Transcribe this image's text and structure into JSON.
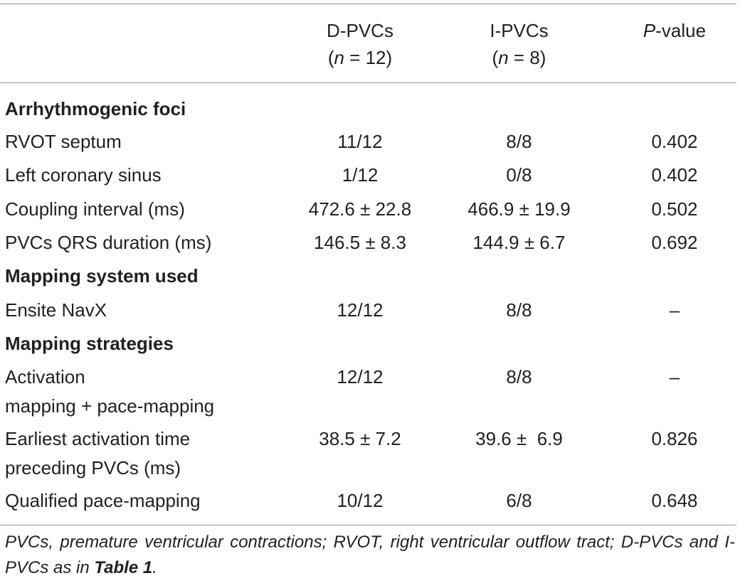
{
  "table": {
    "headers": {
      "col2_line1": "D-PVCs",
      "col2_n_italic": "n",
      "col2_n_rest": " = 12)",
      "col3_line1": "I-PVCs",
      "col3_n_italic": "n",
      "col3_n_rest": " = 8)",
      "open_paren": "(",
      "pvalue_italic": "P",
      "pvalue_rest": "-value"
    },
    "sections": [
      {
        "title": "Arrhythmogenic foci",
        "rows": [
          {
            "label": "RVOT septum",
            "d_pvcs": "11/12",
            "i_pvcs": "8/8",
            "p_value": "0.402"
          },
          {
            "label": "Left coronary sinus",
            "d_pvcs": "1/12",
            "i_pvcs": "0/8",
            "p_value": "0.402"
          },
          {
            "label": "Coupling interval (ms)",
            "d_pvcs": "472.6 ± 22.8",
            "i_pvcs": "466.9 ± 19.9",
            "p_value": "0.502"
          },
          {
            "label": "PVCs QRS duration (ms)",
            "d_pvcs": "146.5 ± 8.3",
            "i_pvcs": "144.9 ± 6.7",
            "p_value": "0.692"
          }
        ]
      },
      {
        "title": "Mapping system used",
        "rows": [
          {
            "label": "Ensite NavX",
            "d_pvcs": "12/12",
            "i_pvcs": "8/8",
            "p_value": "–"
          }
        ]
      },
      {
        "title": "Mapping strategies",
        "rows": [
          {
            "label_line1": "Activation",
            "label_line2": "mapping + pace-mapping",
            "d_pvcs": "12/12",
            "i_pvcs": "8/8",
            "p_value": "–"
          },
          {
            "label_line1": "Earliest activation time",
            "label_line2": "preceding PVCs (ms)",
            "d_pvcs": "38.5 ± 7.2",
            "i_pvcs": "39.6 ±  6.9",
            "p_value": "0.826"
          },
          {
            "label": "Qualified pace-mapping",
            "d_pvcs": "10/12",
            "i_pvcs": "6/8",
            "p_value": "0.648"
          }
        ]
      }
    ]
  },
  "footnote": {
    "text": "PVCs, premature ventricular contractions; RVOT, right ventricular outflow tract; D-PVCs and I-PVCs as in ",
    "ref_bold": "Table 1",
    "end": "."
  }
}
